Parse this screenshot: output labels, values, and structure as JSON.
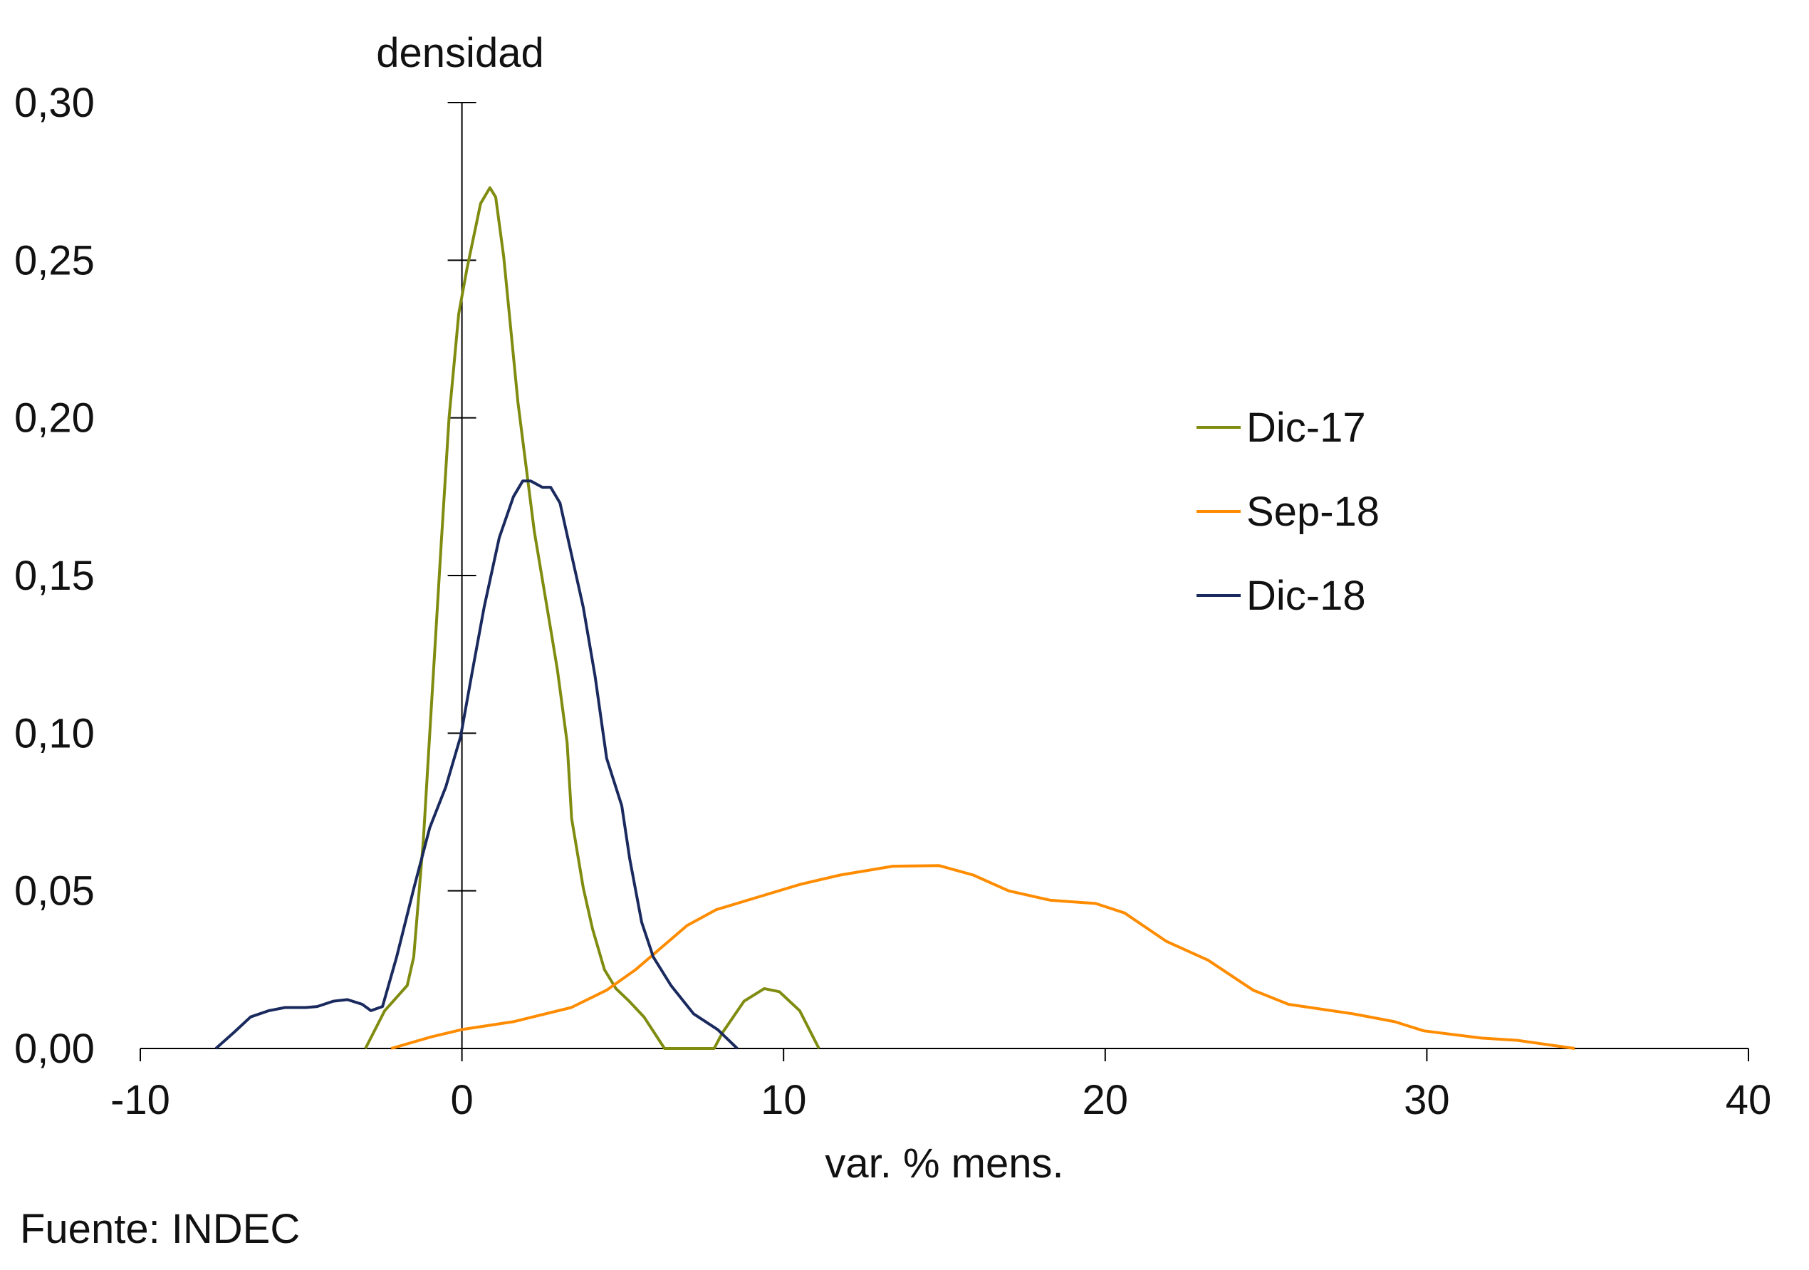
{
  "chart_data": {
    "type": "line",
    "ylabel": "densidad",
    "xlabel": "var. % mens.",
    "source": "Fuente: INDEC",
    "xlim": [
      -10,
      40
    ],
    "ylim": [
      0,
      0.3
    ],
    "xticks": [
      -10,
      0,
      10,
      20,
      30,
      40
    ],
    "xtick_labels": [
      "-10",
      "0",
      "10",
      "20",
      "30",
      "40"
    ],
    "yticks": [
      0,
      0.05,
      0.1,
      0.15,
      0.2,
      0.25,
      0.3
    ],
    "ytick_labels": [
      "0,00",
      "0,05",
      "0,10",
      "0,15",
      "0,20",
      "0,25",
      "0,30"
    ],
    "grid": false,
    "legend_position": "right",
    "series": [
      {
        "name": "Dic-17",
        "color": "#7f8c10",
        "x": [
          -3.0,
          -2.4,
          -1.7,
          -1.5,
          -1.2,
          -0.94,
          -0.65,
          -0.4,
          -0.1,
          0.15,
          0.58,
          0.87,
          1.05,
          1.3,
          1.74,
          2.25,
          2.76,
          2.97,
          3.27,
          3.41,
          3.77,
          4.06,
          4.43,
          4.79,
          5.2,
          5.66,
          6.3,
          7.84,
          8.1,
          8.77,
          9.4,
          9.87,
          10.5,
          11.1
        ],
        "y": [
          0,
          0.012,
          0.02,
          0.029,
          0.066,
          0.11,
          0.159,
          0.2,
          0.233,
          0.247,
          0.268,
          0.273,
          0.27,
          0.251,
          0.205,
          0.164,
          0.133,
          0.12,
          0.097,
          0.073,
          0.051,
          0.038,
          0.025,
          0.019,
          0.015,
          0.01,
          0,
          0,
          0.005,
          0.015,
          0.019,
          0.018,
          0.012,
          0
        ]
      },
      {
        "name": "Sep-18",
        "color": "#ff8c00",
        "x": [
          -2.2,
          -0.94,
          0,
          1.6,
          3.4,
          4.5,
          5.4,
          7.0,
          7.9,
          9.2,
          10.5,
          11.76,
          13.4,
          14.84,
          15.9,
          17.0,
          18.3,
          19.7,
          20.6,
          21.9,
          23.2,
          24.6,
          25.7,
          27.7,
          29.0,
          29.9,
          31.7,
          32.8,
          34.6
        ],
        "y": [
          0,
          0.0037,
          0.006,
          0.0085,
          0.013,
          0.0185,
          0.025,
          0.039,
          0.044,
          0.048,
          0.052,
          0.055,
          0.0578,
          0.058,
          0.055,
          0.05,
          0.047,
          0.046,
          0.043,
          0.034,
          0.028,
          0.0185,
          0.014,
          0.011,
          0.0085,
          0.0056,
          0.0033,
          0.0026,
          0
        ]
      },
      {
        "name": "Dic-18",
        "color": "#1a2a5e",
        "x": [
          -7.65,
          -7.1,
          -6.57,
          -6.0,
          -5.5,
          -4.86,
          -4.5,
          -4.0,
          -3.56,
          -3.1,
          -2.83,
          -2.47,
          -2.03,
          -1.49,
          -1.0,
          -0.5,
          -0.04,
          0.33,
          0.69,
          1.16,
          1.6,
          1.89,
          2.14,
          2.5,
          2.76,
          3.05,
          3.4,
          3.77,
          4.14,
          4.5,
          4.97,
          5.22,
          5.59,
          5.95,
          6.5,
          7.2,
          7.95,
          8.56
        ],
        "y": [
          0,
          0.005,
          0.01,
          0.012,
          0.013,
          0.013,
          0.0133,
          0.015,
          0.0155,
          0.014,
          0.012,
          0.0133,
          0.029,
          0.051,
          0.07,
          0.083,
          0.099,
          0.12,
          0.14,
          0.162,
          0.175,
          0.18,
          0.18,
          0.178,
          0.178,
          0.173,
          0.157,
          0.14,
          0.118,
          0.092,
          0.077,
          0.06,
          0.04,
          0.029,
          0.02,
          0.011,
          0.006,
          0
        ]
      }
    ]
  }
}
